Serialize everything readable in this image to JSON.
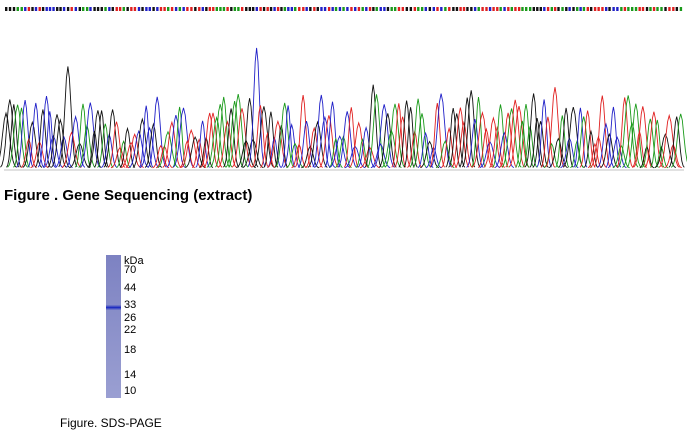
{
  "sequencing": {
    "caption": "Figure . Gene Sequencing (extract)"
  },
  "sds_page": {
    "unit": "kDa",
    "markers": [
      "70",
      "44",
      "33",
      "26",
      "22",
      "18",
      "14",
      "10"
    ],
    "caption": "Figure. SDS-PAGE"
  }
}
